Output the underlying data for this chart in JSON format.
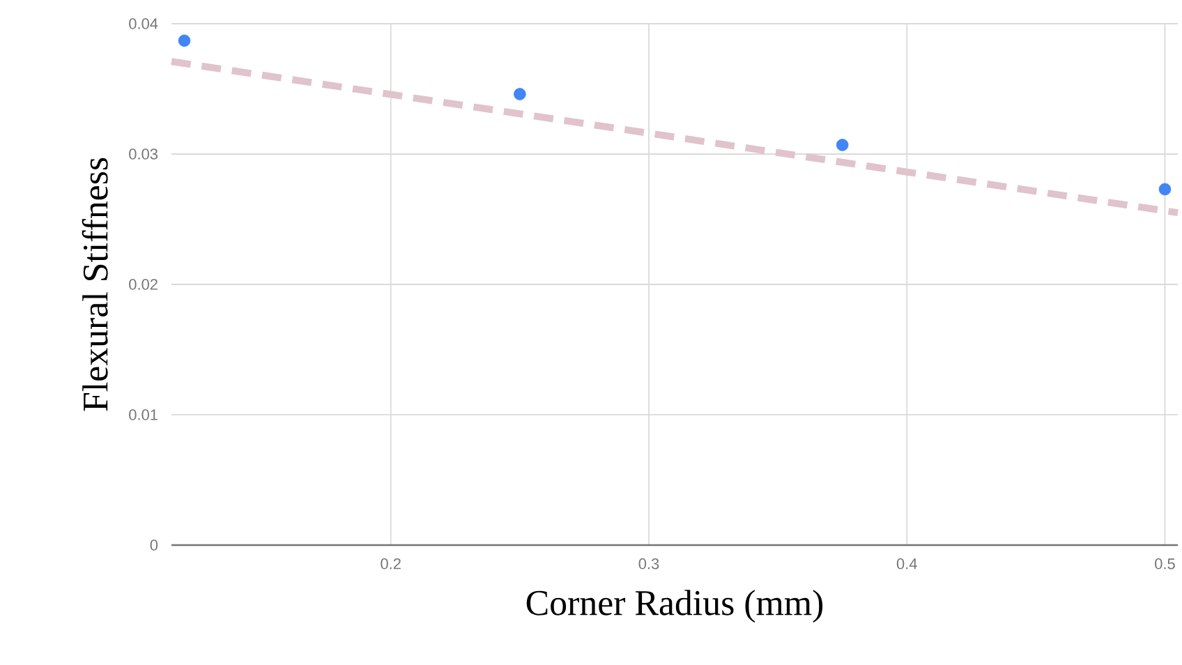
{
  "chart_data": {
    "type": "scatter",
    "xlabel": "Corner Radius (mm)",
    "ylabel": "Flexural Stiffness",
    "xlim": [
      0.115,
      0.505
    ],
    "ylim": [
      0,
      0.04
    ],
    "xticks": [
      0.2,
      0.3,
      0.4,
      0.5
    ],
    "yticks": [
      0,
      0.01,
      0.02,
      0.03,
      0.04
    ],
    "grid": true,
    "series": [
      {
        "color": "#4285f4",
        "marker": "circle",
        "x": [
          0.12,
          0.25,
          0.375,
          0.5
        ],
        "values": [
          0.0387,
          0.0346,
          0.0307,
          0.0273
        ]
      },
      {
        "type": "line",
        "color": "#e0c3cb",
        "line_style": "dashed",
        "marker": "none",
        "x": [
          0.115,
          0.505
        ],
        "values": [
          0.0371,
          0.0255
        ]
      }
    ]
  }
}
